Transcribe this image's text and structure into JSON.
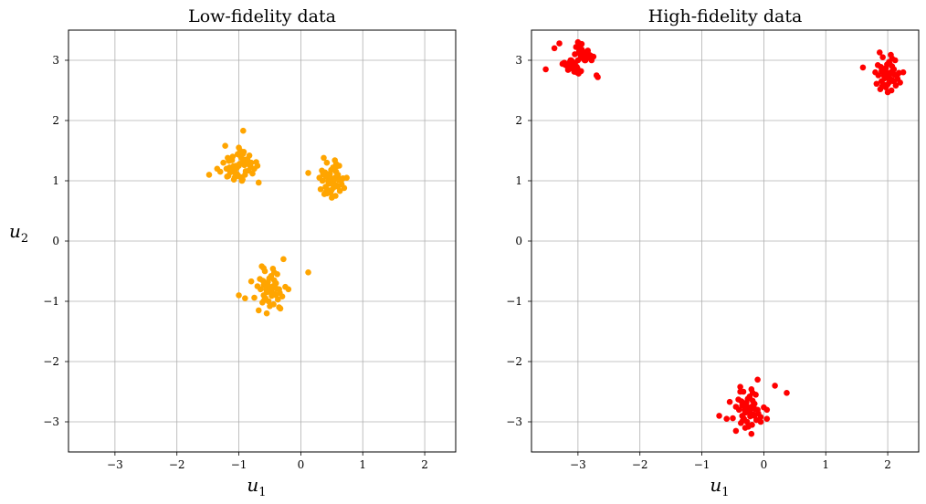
{
  "chart_data": [
    {
      "type": "scatter",
      "title": "Low-fidelity data",
      "xlabel": "u",
      "xlabel_sub": "1",
      "ylabel": "u",
      "ylabel_sub": "2",
      "xlim": [
        -3.75,
        2.5
      ],
      "ylim": [
        -3.5,
        3.5
      ],
      "xticks": [
        -3,
        -2,
        -1,
        0,
        1,
        2
      ],
      "yticks": [
        -3,
        -2,
        -1,
        0,
        1,
        2,
        3
      ],
      "xtick_labels": [
        "−3",
        "−2",
        "−1",
        "0",
        "1",
        "2"
      ],
      "ytick_labels": [
        "−3",
        "−2",
        "−1",
        "0",
        "1",
        "2",
        "3"
      ],
      "grid": true,
      "color": "#ffa500",
      "series": [
        {
          "x": [
            -1.0,
            -0.95,
            -1.05,
            -0.9,
            -1.1,
            -0.85,
            -1.15,
            -0.97,
            -1.02,
            -0.88,
            -1.12,
            -0.93,
            -1.07,
            -0.8,
            -1.2,
            -0.96,
            -1.04,
            -0.91,
            -1.09,
            -0.98,
            -1.01,
            -0.86,
            -1.14,
            -0.94,
            -1.06,
            -0.83,
            -1.17,
            -0.99,
            -1.03,
            -0.89,
            -1.11,
            -0.92,
            -1.08,
            -0.75,
            -1.25,
            -0.7,
            -1.3,
            -1.0,
            -0.95,
            -1.05,
            -0.9,
            -1.1,
            -1.48,
            -0.93,
            -0.68,
            -0.78,
            -1.18,
            -0.87,
            -1.13,
            -0.97,
            -1.02,
            -0.84,
            -1.16,
            -1.22,
            -0.72,
            -0.94,
            -1.06,
            -0.81,
            -1.19,
            -1.35
          ],
          "y": [
            1.25,
            1.3,
            1.2,
            1.35,
            1.15,
            1.28,
            1.22,
            1.4,
            1.1,
            1.33,
            1.18,
            1.45,
            1.05,
            1.3,
            1.2,
            1.38,
            1.12,
            1.26,
            1.24,
            1.5,
            1.08,
            1.36,
            1.14,
            1.32,
            1.18,
            1.42,
            1.08,
            1.28,
            1.22,
            1.16,
            1.34,
            1.48,
            1.02,
            1.2,
            1.3,
            1.25,
            1.15,
            1.55,
            1.0,
            1.25,
            1.1,
            1.4,
            1.1,
            1.83,
            0.97,
            1.12,
            1.38,
            1.29,
            1.21,
            1.06,
            1.44,
            1.17,
            1.33,
            1.58,
            1.31,
            1.02,
            1.13,
            1.23,
            1.07,
            1.2
          ]
        },
        {
          "x": [
            0.5,
            0.55,
            0.45,
            0.6,
            0.4,
            0.52,
            0.48,
            0.65,
            0.35,
            0.57,
            0.43,
            0.62,
            0.38,
            0.5,
            0.54,
            0.46,
            0.58,
            0.42,
            0.7,
            0.3,
            0.53,
            0.47,
            0.63,
            0.37,
            0.56,
            0.44,
            0.51,
            0.49,
            0.6,
            0.4,
            0.55,
            0.45,
            0.68,
            0.32,
            0.52,
            0.48,
            0.59,
            0.41,
            0.57,
            0.43,
            0.74,
            0.12,
            0.5,
            0.55,
            0.45,
            0.61,
            0.39,
            0.53,
            0.47,
            0.66,
            0.34,
            0.5,
            0.58,
            0.42,
            0.64,
            0.36
          ],
          "y": [
            1.0,
            1.05,
            0.95,
            1.1,
            0.9,
            1.2,
            0.8,
            1.0,
            1.0,
            1.15,
            0.85,
            1.25,
            0.78,
            0.98,
            1.02,
            1.08,
            0.92,
            1.3,
            0.88,
            1.05,
            0.95,
            1.12,
            0.83,
            1.38,
            0.75,
            1.0,
            1.0,
            1.18,
            0.9,
            1.07,
            0.93,
            1.0,
            1.04,
            0.86,
            1.22,
            0.96,
            1.1,
            0.82,
            1.28,
            1.08,
            1.05,
            1.13,
            0.72,
            1.34,
            0.97,
            1.01,
            1.14,
            0.89,
            1.06,
            0.94,
            1.17,
            0.85,
            1.24,
            0.79,
            1.03,
            1.11
          ]
        },
        {
          "x": [
            -0.5,
            -0.45,
            -0.55,
            -0.4,
            -0.6,
            -0.48,
            -0.52,
            -0.35,
            -0.65,
            -0.43,
            -0.57,
            -0.38,
            -0.62,
            -0.5,
            -0.46,
            -0.54,
            -0.42,
            -0.58,
            -0.3,
            -0.7,
            -0.47,
            -0.53,
            -0.37,
            -0.63,
            -0.44,
            -0.56,
            -0.49,
            -0.51,
            -0.4,
            -0.6,
            -0.45,
            -0.55,
            -0.25,
            -0.75,
            -0.48,
            -0.52,
            -0.41,
            -0.59,
            -0.43,
            -0.57,
            -0.2,
            -0.8,
            -0.5,
            -0.45,
            -0.55,
            -0.39,
            -0.61,
            -0.47,
            -0.53,
            -0.34,
            -0.66,
            0.12,
            -1.0,
            -0.9,
            -0.55,
            -0.35,
            -0.28,
            -0.68,
            -0.6,
            -0.33
          ],
          "y": [
            -0.8,
            -0.75,
            -0.85,
            -0.7,
            -0.9,
            -0.6,
            -1.0,
            -0.8,
            -0.8,
            -0.65,
            -0.95,
            -0.55,
            -1.02,
            -0.82,
            -0.78,
            -0.72,
            -0.88,
            -0.5,
            -0.92,
            -0.75,
            -0.85,
            -0.68,
            -0.97,
            -0.42,
            -1.05,
            -0.8,
            -0.8,
            -0.62,
            -0.9,
            -0.73,
            -0.87,
            -0.8,
            -0.76,
            -0.94,
            -0.58,
            -0.84,
            -0.7,
            -0.98,
            -0.52,
            -0.72,
            -0.8,
            -0.67,
            -1.08,
            -0.46,
            -0.83,
            -0.79,
            -0.66,
            -0.91,
            -0.74,
            -0.86,
            -0.63,
            -0.52,
            -0.9,
            -0.95,
            -1.2,
            -1.1,
            -0.3,
            -1.15,
            -0.45,
            -1.12
          ]
        }
      ]
    },
    {
      "type": "scatter",
      "title": "High-fidelity data",
      "xlabel": "u",
      "xlabel_sub": "1",
      "ylabel": "",
      "xlim": [
        -3.75,
        2.5
      ],
      "ylim": [
        -3.5,
        3.5
      ],
      "xticks": [
        -3,
        -2,
        -1,
        0,
        1,
        2
      ],
      "yticks": [
        -3,
        -2,
        -1,
        0,
        1,
        2,
        3
      ],
      "xtick_labels": [
        "−3",
        "−2",
        "−1",
        "0",
        "1",
        "2"
      ],
      "ytick_labels": [
        "−3",
        "−2",
        "−1",
        "0",
        "1",
        "2",
        "3"
      ],
      "grid": true,
      "color": "#ff0000",
      "series": [
        {
          "x": [
            -3.0,
            -2.95,
            -3.05,
            -2.9,
            -3.1,
            -2.85,
            -3.15,
            -2.97,
            -3.02,
            -2.88,
            -3.12,
            -2.93,
            -3.07,
            -2.8,
            -3.2,
            -2.96,
            -3.04,
            -2.91,
            -3.09,
            -2.98,
            -3.01,
            -2.86,
            -3.14,
            -2.94,
            -3.06,
            -2.83,
            -3.17,
            -2.99,
            -3.03,
            -2.89,
            -3.11,
            -2.92,
            -3.08,
            -2.75,
            -3.25,
            -2.7,
            -3.3,
            -3.0,
            -2.95,
            -3.05,
            -3.52,
            -2.68,
            -2.87,
            -3.13,
            -2.97,
            -3.02,
            -2.84,
            -3.16,
            -2.78,
            -3.22,
            -2.94,
            -3.06,
            -2.81,
            -3.19,
            -3.38
          ],
          "y": [
            3.0,
            3.05,
            2.95,
            3.1,
            2.9,
            3.15,
            2.85,
            3.2,
            2.8,
            3.0,
            3.0,
            3.12,
            2.88,
            3.08,
            2.92,
            3.25,
            2.82,
            3.02,
            2.98,
            3.15,
            2.87,
            3.05,
            2.95,
            3.18,
            2.84,
            3.1,
            2.9,
            2.78,
            3.22,
            3.0,
            3.0,
            3.14,
            2.86,
            3.06,
            2.94,
            2.75,
            3.28,
            3.3,
            2.82,
            3.1,
            2.85,
            2.72,
            3.02,
            2.97,
            3.11,
            2.89,
            3.16,
            2.84,
            3.0,
            2.96,
            3.27,
            2.81,
            3.04,
            2.93,
            3.2
          ]
        },
        {
          "x": [
            2.0,
            2.05,
            1.95,
            2.1,
            1.9,
            2.03,
            1.97,
            2.15,
            1.85,
            2.07,
            1.93,
            2.12,
            1.88,
            2.0,
            2.04,
            1.96,
            2.08,
            1.92,
            2.2,
            1.8,
            2.03,
            1.97,
            2.13,
            1.87,
            2.06,
            1.94,
            2.01,
            1.99,
            2.1,
            1.9,
            2.05,
            1.95,
            2.18,
            1.82,
            2.02,
            1.98,
            2.09,
            1.91,
            2.07,
            1.93,
            1.6,
            2.25,
            2.0,
            2.05,
            1.95,
            2.11,
            1.89,
            2.03,
            1.97,
            2.16,
            1.84,
            2.0
          ],
          "y": [
            2.75,
            2.8,
            2.7,
            2.85,
            2.65,
            2.95,
            2.55,
            2.75,
            2.75,
            2.9,
            2.6,
            3.0,
            2.52,
            2.73,
            2.77,
            2.83,
            2.67,
            3.05,
            2.63,
            2.8,
            2.7,
            2.87,
            2.58,
            3.13,
            2.5,
            2.75,
            2.75,
            2.93,
            2.65,
            2.82,
            2.68,
            2.75,
            2.79,
            2.61,
            2.97,
            2.71,
            2.85,
            2.57,
            3.03,
            2.83,
            2.88,
            2.8,
            2.47,
            3.09,
            2.72,
            2.76,
            2.89,
            2.64,
            2.81,
            2.69,
            2.92,
            2.6
          ]
        },
        {
          "x": [
            -0.25,
            -0.2,
            -0.3,
            -0.15,
            -0.35,
            -0.23,
            -0.27,
            -0.1,
            -0.4,
            -0.18,
            -0.32,
            -0.13,
            -0.37,
            -0.25,
            -0.21,
            -0.29,
            -0.17,
            -0.33,
            -0.05,
            -0.45,
            -0.22,
            -0.28,
            -0.12,
            -0.38,
            -0.19,
            -0.31,
            -0.24,
            -0.26,
            -0.15,
            -0.35,
            -0.2,
            -0.3,
            0.0,
            -0.5,
            -0.23,
            -0.27,
            -0.16,
            -0.34,
            -0.18,
            -0.32,
            0.05,
            -0.55,
            -0.25,
            -0.2,
            -0.3,
            -0.14,
            -0.36,
            -0.22,
            -0.28,
            -0.09,
            -0.41,
            0.37,
            0.18,
            -0.72,
            -0.6,
            -0.3,
            -0.1,
            -0.45,
            -0.05,
            -0.2,
            0.05,
            -0.38
          ],
          "y": [
            -2.8,
            -2.75,
            -2.85,
            -2.7,
            -2.9,
            -2.6,
            -3.0,
            -2.8,
            -2.8,
            -2.65,
            -2.95,
            -2.55,
            -3.02,
            -2.82,
            -2.78,
            -2.72,
            -2.88,
            -2.5,
            -2.92,
            -2.75,
            -2.85,
            -2.68,
            -2.97,
            -2.42,
            -3.05,
            -2.8,
            -2.8,
            -2.62,
            -2.9,
            -2.73,
            -2.87,
            -2.8,
            -2.76,
            -2.94,
            -2.58,
            -2.84,
            -2.7,
            -2.98,
            -2.52,
            -2.72,
            -2.8,
            -2.67,
            -3.08,
            -2.46,
            -2.83,
            -2.79,
            -2.66,
            -2.91,
            -2.74,
            -2.86,
            -2.63,
            -2.52,
            -2.4,
            -2.9,
            -2.95,
            -3.1,
            -2.3,
            -3.15,
            -3.0,
            -3.2,
            -2.95,
            -2.5
          ]
        }
      ]
    }
  ]
}
